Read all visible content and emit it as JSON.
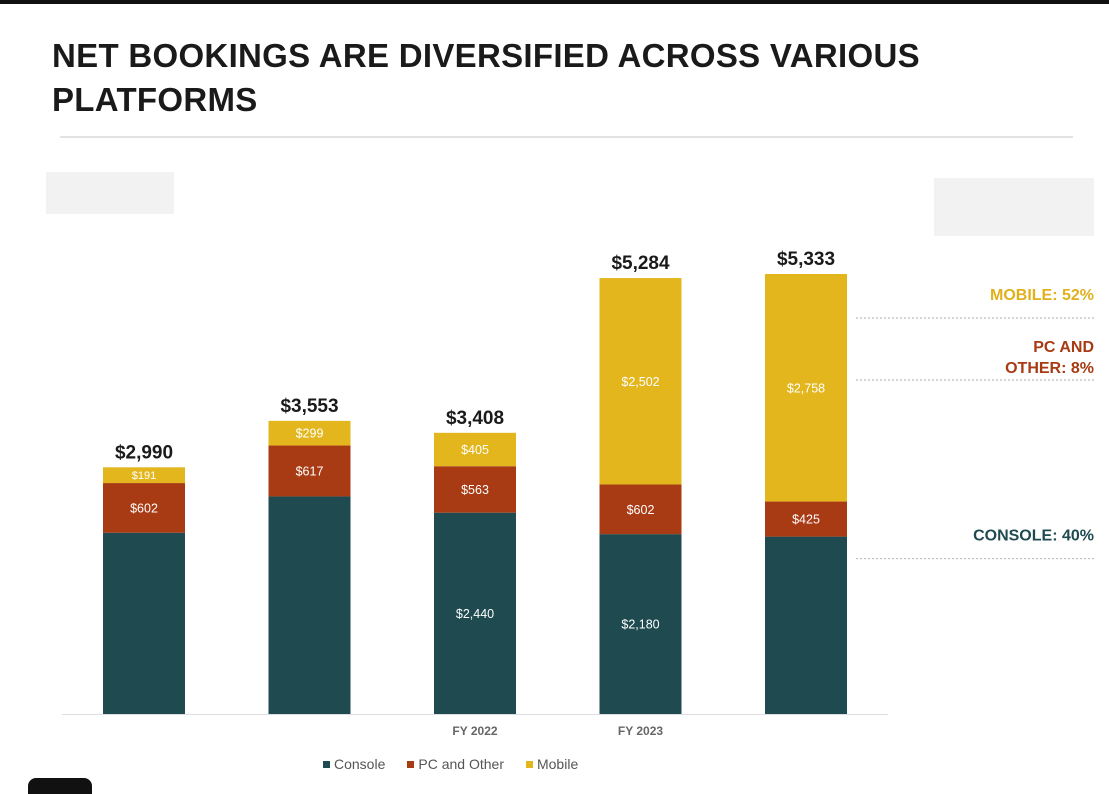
{
  "slide": {
    "title": "NET BOOKINGS ARE DIVERSIFIED ACROSS VARIOUS PLATFORMS"
  },
  "chart_data": {
    "type": "bar",
    "stacked": true,
    "categories": [
      "",
      "",
      "FY 2022",
      "FY 2023",
      ""
    ],
    "totals": [
      "$2,990",
      "$3,553",
      "$3,408",
      "$5,284",
      "$5,333"
    ],
    "series": [
      {
        "name": "Console",
        "color": "#1e4a50",
        "values": [
          2197,
          2637,
          2440,
          2180,
          2150
        ],
        "labels": [
          "",
          "",
          "$2,440",
          "$2,180",
          ""
        ]
      },
      {
        "name": "PC and Other",
        "color": "#a83a14",
        "values": [
          602,
          617,
          563,
          602,
          425
        ],
        "labels": [
          "$602",
          "$617",
          "$563",
          "$602",
          "$425"
        ]
      },
      {
        "name": "Mobile",
        "color": "#e3b61e",
        "values": [
          191,
          299,
          405,
          2502,
          2758
        ],
        "labels": [
          "$191",
          "$299",
          "$405",
          "$2,502",
          "$2,758"
        ]
      }
    ],
    "ylim": [
      0,
      5333
    ],
    "grid": false,
    "legend_position": "bottom",
    "annotations": [
      {
        "text": "MOBILE: 52%",
        "series": "Mobile"
      },
      {
        "text": "PC AND OTHER: 8%",
        "series": "PC and Other"
      },
      {
        "text": "CONSOLE: 40%",
        "series": "Console"
      }
    ]
  }
}
